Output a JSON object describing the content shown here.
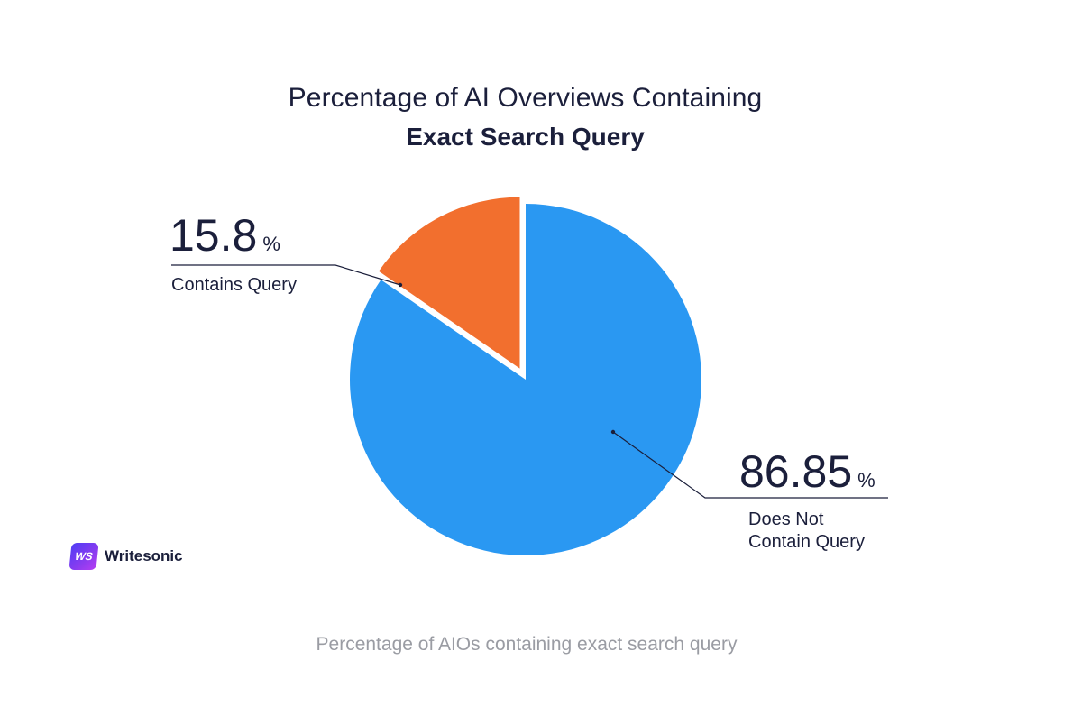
{
  "chart_data": {
    "type": "pie",
    "title": "Percentage of AI Overviews Containing",
    "subtitle": "Exact Search Query",
    "slices": [
      {
        "label": "Contains Query",
        "value": 15.8,
        "value_text": "15.8",
        "unit": "%",
        "color": "#f26f2e",
        "exploded": true
      },
      {
        "label": "Does Not Contain Query",
        "label_lines": [
          "Does Not",
          "Contain Query"
        ],
        "value": 86.85,
        "value_text": "86.85",
        "unit": "%",
        "color": "#2a98f2"
      }
    ],
    "legend": "none",
    "annotations": "callout labels with leader lines"
  },
  "brand": {
    "logo_text": "WS",
    "name": "Writesonic"
  },
  "caption": "Percentage of AIOs containing exact search query"
}
